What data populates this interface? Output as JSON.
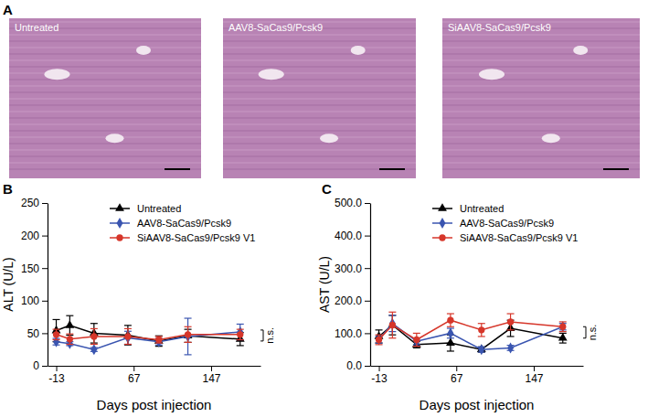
{
  "panel_labels": [
    "A",
    "B",
    "C"
  ],
  "images": [
    {
      "label": "Untreated"
    },
    {
      "label": "AAV8-SaCas9/Pcsk9"
    },
    {
      "label": "SiAAV8-SaCas9/Pcsk9"
    }
  ],
  "chart_data": [
    {
      "type": "line",
      "x_label": "Days post injection",
      "y_label": "ALT (U/L)",
      "x": [
        -13,
        1,
        26,
        61,
        93,
        123,
        177
      ],
      "xlim": [
        -22,
        198
      ],
      "xticks": [
        -13,
        67,
        147
      ],
      "ylim": [
        0,
        250
      ],
      "yticks": [
        0,
        50,
        100,
        150,
        200,
        250
      ],
      "grid": false,
      "legend": "top",
      "annotation": "n.s.",
      "series": [
        {
          "name": "Untreated",
          "color": "#000000",
          "marker": "triangle",
          "line_style": "solid",
          "values": [
            54,
            62,
            50,
            47,
            38,
            46,
            41
          ],
          "errors": [
            17,
            15,
            15,
            15,
            8,
            10,
            10
          ]
        },
        {
          "name": "AAV8-SaCas9/Pcsk9",
          "color": "#3a55b0",
          "marker": "diamond",
          "line_style": "solid",
          "values": [
            37,
            34,
            25,
            43,
            37,
            45,
            52
          ],
          "errors": [
            5,
            3,
            3,
            10,
            5,
            28,
            12
          ]
        },
        {
          "name": "SiAAV8-SaCas9/Pcsk9 V1",
          "color": "#d6362a",
          "marker": "circle",
          "line_style": "solid",
          "values": [
            48,
            41,
            45,
            45,
            40,
            48,
            48
          ],
          "errors": [
            8,
            8,
            12,
            12,
            5,
            12,
            8
          ]
        }
      ]
    },
    {
      "type": "line",
      "x_label": "Days post injection",
      "y_label": "AST (U/L)",
      "x": [
        -13,
        1,
        26,
        61,
        93,
        123,
        177
      ],
      "xlim": [
        -22,
        198
      ],
      "xticks": [
        -13,
        67,
        147
      ],
      "ylim": [
        0,
        500
      ],
      "yticks": [
        {
          "value": 0,
          "label": "0.0"
        },
        {
          "value": 100,
          "label": "100.0"
        },
        {
          "value": 200,
          "label": "200.0"
        },
        {
          "value": 300,
          "label": "300.0"
        },
        {
          "value": 400,
          "label": "400.0"
        },
        {
          "value": 500,
          "label": "500.0"
        }
      ],
      "grid": false,
      "legend": "top",
      "annotation": "n.s.",
      "series": [
        {
          "name": "Untreated",
          "color": "#000000",
          "marker": "triangle",
          "line_style": "solid",
          "values": [
            90,
            125,
            65,
            70,
            50,
            115,
            85
          ],
          "errors": [
            20,
            30,
            10,
            25,
            8,
            25,
            15
          ]
        },
        {
          "name": "AAV8-SaCas9/Pcsk9",
          "color": "#3a55b0",
          "marker": "diamond",
          "line_style": "solid",
          "values": [
            80,
            130,
            75,
            100,
            50,
            55,
            120
          ],
          "errors": [
            10,
            25,
            10,
            15,
            8,
            8,
            10
          ]
        },
        {
          "name": "SiAAV8-SaCas9/Pcsk9 V1",
          "color": "#d6362a",
          "marker": "circle",
          "line_style": "solid",
          "values": [
            80,
            125,
            80,
            140,
            110,
            135,
            120
          ],
          "errors": [
            15,
            40,
            20,
            20,
            20,
            25,
            15
          ]
        }
      ]
    }
  ]
}
